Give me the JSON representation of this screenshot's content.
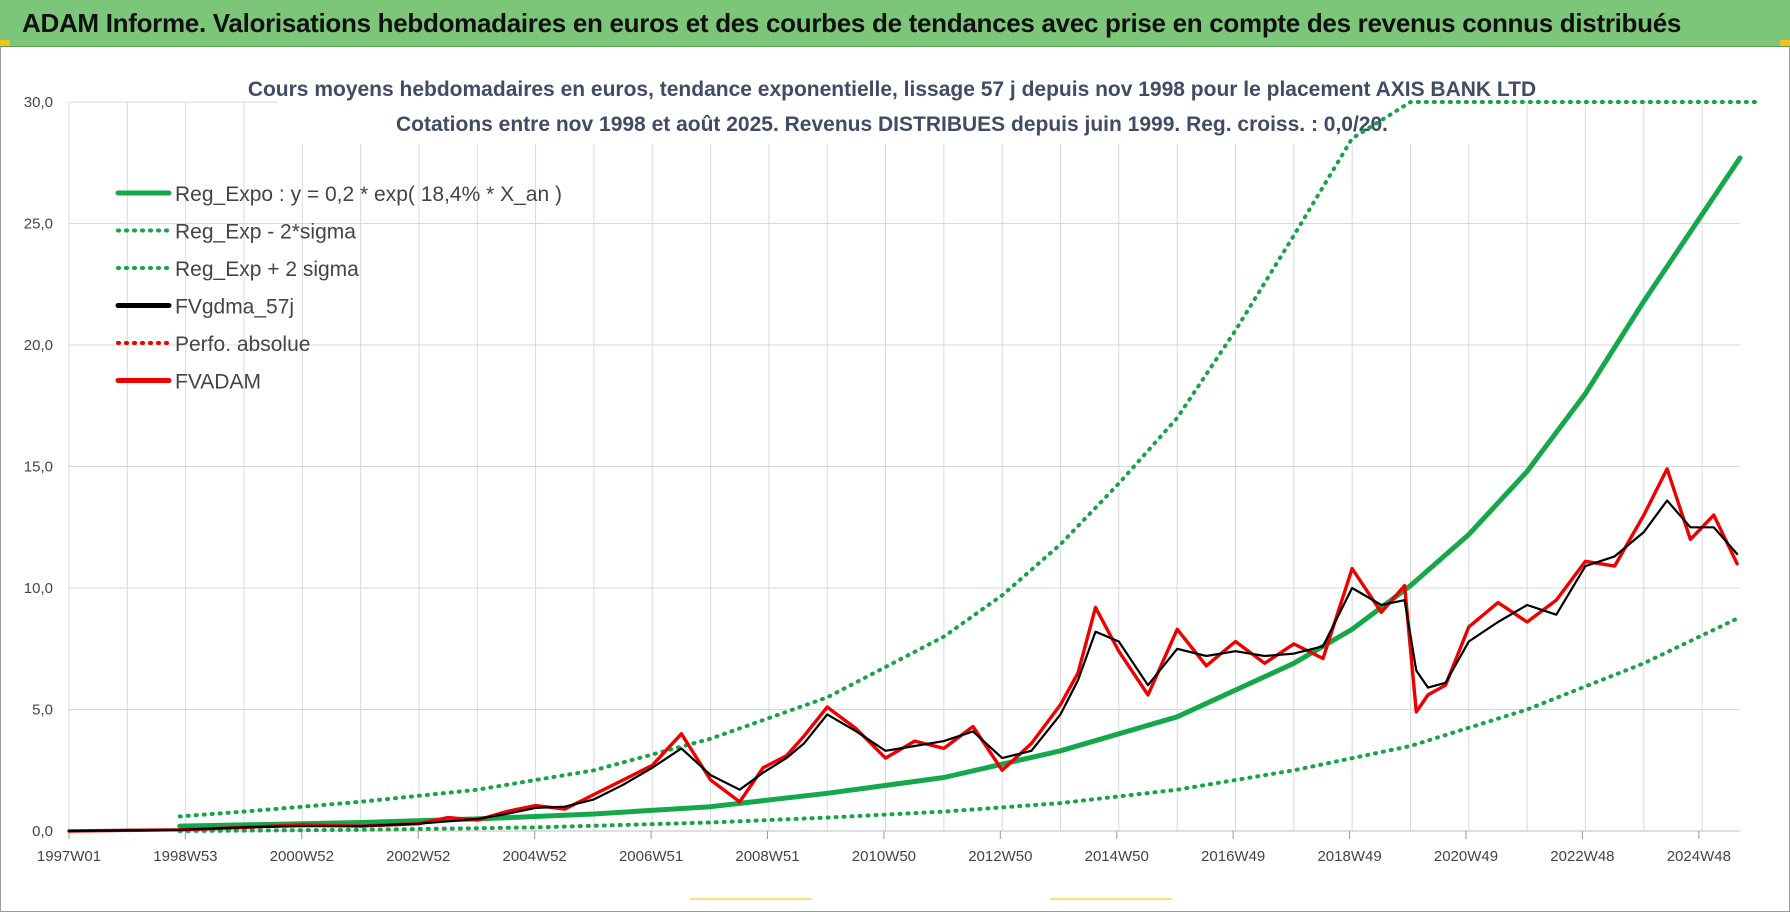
{
  "banner": {
    "title": "ADAM Informe. Valorisations hebdomadaires en euros et des courbes de tendances avec prise en compte des revenus connus distribués"
  },
  "colors": {
    "banner_bg": "#7cc67a",
    "regression_green": "#14a84a",
    "band_green": "#18a34a",
    "fvgdma_black": "#000000",
    "fvadam_red": "#ee0000",
    "perfo_red": "#ee0000",
    "grid": "#d9d9d9"
  },
  "chart_data": {
    "type": "line",
    "title_line1": "Cours moyens hebdomadaires en euros, tendance exponentielle, lissage 57 j depuis nov 1998  pour le placement AXIS BANK LTD",
    "title_line2": "Cotations entre nov 1998 et août 2025.  Revenus DISTRIBUES depuis juin 1999.  Reg. croiss. : 0,0/20.",
    "ylim": [
      0,
      30
    ],
    "y_ticks": [
      "0,0",
      "5,0",
      "10,0",
      "15,0",
      "20,0",
      "25,0",
      "30,0"
    ],
    "x_ticks": [
      "1997W01",
      "1998W53",
      "2000W52",
      "2002W52",
      "2004W52",
      "2006W51",
      "2008W51",
      "2010W50",
      "2012W50",
      "2014W50",
      "2016W49",
      "2018W49",
      "2020W49",
      "2022W48",
      "2024W48"
    ],
    "xlim_years": [
      1997.0,
      2025.65
    ],
    "grid": true,
    "legend_position": "top-left",
    "legend": [
      {
        "label": "Reg_Expo : y = 0,2 * exp( 18,4% *  X_an )",
        "color": "#14a84a",
        "style": "solid"
      },
      {
        "label": "Reg_Exp - 2*sigma",
        "color": "#18a34a",
        "style": "dotted"
      },
      {
        "label": "Reg_Exp + 2 sigma",
        "color": "#18a34a",
        "style": "dotted"
      },
      {
        "label": "FVgdma_57j",
        "color": "#000000",
        "style": "solid"
      },
      {
        "label": "Perfo. absolue",
        "color": "#ee0000",
        "style": "dotted"
      },
      {
        "label": "FVADAM",
        "color": "#ee0000",
        "style": "solid"
      }
    ],
    "series": [
      {
        "key": "reg_expo",
        "x": [
          1998.9,
          2000,
          2002,
          2004,
          2006,
          2008,
          2010,
          2012,
          2014,
          2016,
          2018,
          2019,
          2020,
          2021,
          2022,
          2023,
          2024,
          2025.65
        ],
        "y": [
          0.2,
          0.25,
          0.35,
          0.5,
          0.7,
          1.0,
          1.55,
          2.2,
          3.3,
          4.7,
          6.9,
          8.3,
          10.1,
          12.2,
          14.8,
          18.0,
          21.8,
          27.7
        ]
      },
      {
        "key": "reg_minus",
        "x": [
          1998.9,
          2002,
          2005,
          2008,
          2010,
          2012,
          2014,
          2016,
          2018,
          2020,
          2022,
          2024,
          2025.65
        ],
        "y": [
          0.0,
          0.05,
          0.15,
          0.35,
          0.55,
          0.8,
          1.15,
          1.7,
          2.5,
          3.5,
          5.0,
          6.9,
          8.8
        ]
      },
      {
        "key": "reg_plus",
        "x": [
          1998.9,
          2000,
          2002,
          2004,
          2006,
          2008,
          2010,
          2012,
          2013,
          2014,
          2015,
          2016,
          2017,
          2018,
          2019,
          2020,
          2021,
          2022.35,
          2026
        ],
        "y": [
          0.6,
          0.8,
          1.2,
          1.7,
          2.5,
          3.8,
          5.5,
          8.0,
          9.7,
          11.8,
          14.3,
          17.0,
          20.6,
          24.5,
          28.5,
          30.0,
          30.0,
          30.0,
          30.0
        ]
      },
      {
        "key": "fvgdma",
        "x": [
          1997.0,
          1998.9,
          2000.0,
          2001.0,
          2002.0,
          2003.0,
          2003.5,
          2004.0,
          2004.5,
          2005.0,
          2005.5,
          2006.0,
          2006.5,
          2007.0,
          2007.5,
          2008.0,
          2008.5,
          2008.9,
          2009.3,
          2009.6,
          2010.0,
          2010.5,
          2011.0,
          2011.5,
          2012.0,
          2012.5,
          2013.0,
          2013.5,
          2014.0,
          2014.3,
          2014.6,
          2015.0,
          2015.5,
          2016.0,
          2016.5,
          2017.0,
          2017.5,
          2018.0,
          2018.5,
          2019.0,
          2019.5,
          2019.9,
          2020.1,
          2020.3,
          2020.6,
          2021.0,
          2021.5,
          2022.0,
          2022.5,
          2023.0,
          2023.5,
          2024.0,
          2024.4,
          2024.8,
          2025.2,
          2025.6
        ],
        "y": [
          0.0,
          0.05,
          0.15,
          0.2,
          0.2,
          0.3,
          0.4,
          0.5,
          0.7,
          0.95,
          1.0,
          1.3,
          1.9,
          2.6,
          3.4,
          2.3,
          1.7,
          2.4,
          3.0,
          3.6,
          4.8,
          4.1,
          3.3,
          3.5,
          3.7,
          4.1,
          3.0,
          3.3,
          4.8,
          6.2,
          8.2,
          7.8,
          6.0,
          7.5,
          7.2,
          7.4,
          7.2,
          7.3,
          7.6,
          10.0,
          9.3,
          9.5,
          6.6,
          5.9,
          6.1,
          7.8,
          8.6,
          9.3,
          8.9,
          10.9,
          11.3,
          12.3,
          13.6,
          12.5,
          12.5,
          11.4
        ]
      },
      {
        "key": "fvadam",
        "x": [
          1997.0,
          1998.9,
          2000.0,
          2001.0,
          2002.0,
          2003.0,
          2003.5,
          2004.0,
          2004.5,
          2005.0,
          2005.5,
          2006.0,
          2006.5,
          2007.0,
          2007.5,
          2008.0,
          2008.5,
          2008.9,
          2009.3,
          2009.6,
          2010.0,
          2010.5,
          2011.0,
          2011.5,
          2012.0,
          2012.5,
          2013.0,
          2013.5,
          2014.0,
          2014.3,
          2014.6,
          2015.0,
          2015.5,
          2016.0,
          2016.5,
          2017.0,
          2017.5,
          2018.0,
          2018.5,
          2019.0,
          2019.5,
          2019.9,
          2020.1,
          2020.3,
          2020.6,
          2021.0,
          2021.5,
          2022.0,
          2022.5,
          2023.0,
          2023.5,
          2024.0,
          2024.4,
          2024.8,
          2025.2,
          2025.6
        ],
        "y": [
          0.0,
          0.05,
          0.15,
          0.25,
          0.2,
          0.3,
          0.55,
          0.45,
          0.8,
          1.05,
          0.9,
          1.5,
          2.1,
          2.7,
          4.0,
          2.1,
          1.2,
          2.6,
          3.1,
          3.9,
          5.1,
          4.2,
          3.0,
          3.7,
          3.4,
          4.3,
          2.5,
          3.6,
          5.2,
          6.5,
          9.2,
          7.4,
          5.6,
          8.3,
          6.8,
          7.8,
          6.9,
          7.7,
          7.1,
          10.8,
          9.0,
          10.1,
          4.9,
          5.6,
          6.0,
          8.4,
          9.4,
          8.6,
          9.5,
          11.1,
          10.9,
          13.0,
          14.9,
          12.0,
          13.0,
          11.0
        ]
      }
    ]
  }
}
